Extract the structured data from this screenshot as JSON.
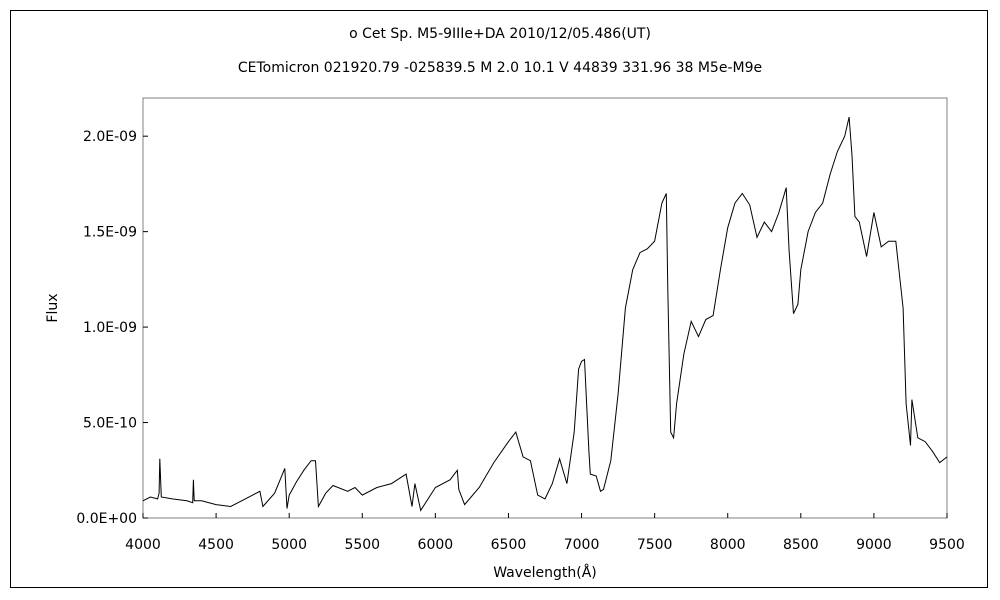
{
  "chart_data": {
    "type": "line",
    "title_line1": "o  Cet    Sp. M5-9IIIe+DA    2010/12/05.486(UT)",
    "title_line2": "CETomicron 021920.79 -025839.5 M 2.0 10.1 V 44839 331.96 38 M5e-M9e",
    "xlabel": "Wavelength(Å)",
    "ylabel": "Flux",
    "xlim": [
      4000,
      9500
    ],
    "ylim": [
      0,
      2.2e-09
    ],
    "x_ticks": [
      4000,
      4500,
      5000,
      5500,
      6000,
      6500,
      7000,
      7500,
      8000,
      8500,
      9000,
      9500
    ],
    "x_tick_labels": [
      "4000",
      "4500",
      "5000",
      "5500",
      "6000",
      "6500",
      "7000",
      "7500",
      "8000",
      "8500",
      "9000",
      "9500"
    ],
    "y_ticks": [
      0,
      5e-10,
      1e-09,
      1.5e-09,
      2e-09
    ],
    "y_tick_labels": [
      "0.0E+00",
      "5.0E-10",
      "1.0E-09",
      "1.5E-09",
      "2.0E-09"
    ],
    "grid": false,
    "line_color": "#000000",
    "series": [
      {
        "x": [
          4000,
          4050,
          4100,
          4110,
          4115,
          4125,
          4200,
          4300,
          4340,
          4345,
          4350,
          4400,
          4500,
          4600,
          4700,
          4800,
          4820,
          4900,
          4970,
          4985,
          5000,
          5050,
          5100,
          5150,
          5180,
          5200,
          5250,
          5300,
          5400,
          5450,
          5500,
          5600,
          5700,
          5800,
          5840,
          5860,
          5900,
          6000,
          6100,
          6150,
          6160,
          6200,
          6300,
          6400,
          6500,
          6550,
          6600,
          6650,
          6700,
          6750,
          6800,
          6850,
          6900,
          6950,
          6980,
          7000,
          7020,
          7050,
          7060,
          7100,
          7130,
          7150,
          7200,
          7250,
          7300,
          7350,
          7400,
          7450,
          7500,
          7550,
          7580,
          7590,
          7610,
          7630,
          7650,
          7700,
          7750,
          7800,
          7850,
          7900,
          7950,
          8000,
          8050,
          8100,
          8150,
          8200,
          8250,
          8300,
          8350,
          8400,
          8420,
          8450,
          8480,
          8500,
          8550,
          8600,
          8650,
          8700,
          8750,
          8800,
          8830,
          8850,
          8870,
          8900,
          8950,
          9000,
          9050,
          9100,
          9150,
          9200,
          9220,
          9250,
          9260,
          9300,
          9350,
          9400,
          9450,
          9500
        ],
        "y": [
          9e-11,
          1.1e-10,
          1e-10,
          1.3e-10,
          3.1e-10,
          1.1e-10,
          1e-10,
          9e-11,
          8e-11,
          2e-10,
          9e-11,
          9e-11,
          7e-11,
          6e-11,
          1e-10,
          1.4e-10,
          6e-11,
          1.3e-10,
          2.6e-10,
          5e-11,
          1.2e-10,
          1.9e-10,
          2.5e-10,
          3e-10,
          3e-10,
          6e-11,
          1.3e-10,
          1.7e-10,
          1.4e-10,
          1.6e-10,
          1.2e-10,
          1.6e-10,
          1.8e-10,
          2.3e-10,
          6e-11,
          1.8e-10,
          4e-11,
          1.6e-10,
          2e-10,
          2.5e-10,
          1.5e-10,
          7e-11,
          1.6e-10,
          2.9e-10,
          4e-10,
          4.5e-10,
          3.2e-10,
          3e-10,
          1.2e-10,
          1e-10,
          1.8e-10,
          3.1e-10,
          1.8e-10,
          4.5e-10,
          7.8e-10,
          8.2e-10,
          8.3e-10,
          3.5e-10,
          2.3e-10,
          2.2e-10,
          1.4e-10,
          1.5e-10,
          3e-10,
          6.5e-10,
          1.1e-09,
          1.3e-09,
          1.39e-09,
          1.41e-09,
          1.45e-09,
          1.65e-09,
          1.7e-09,
          1.2e-09,
          4.5e-10,
          4.2e-10,
          6e-10,
          8.6e-10,
          1.03e-09,
          9.5e-10,
          1.04e-09,
          1.06e-09,
          1.3e-09,
          1.52e-09,
          1.65e-09,
          1.7e-09,
          1.64e-09,
          1.47e-09,
          1.55e-09,
          1.5e-09,
          1.6e-09,
          1.73e-09,
          1.4e-09,
          1.07e-09,
          1.12e-09,
          1.3e-09,
          1.5e-09,
          1.6e-09,
          1.65e-09,
          1.8e-09,
          1.92e-09,
          2e-09,
          2.1e-09,
          1.9e-09,
          1.58e-09,
          1.55e-09,
          1.37e-09,
          1.6e-09,
          1.42e-09,
          1.45e-09,
          1.45e-09,
          1.1e-09,
          6e-10,
          3.8e-10,
          6.2e-10,
          4.2e-10,
          4e-10,
          3.5e-10,
          2.9e-10,
          3.2e-10
        ]
      }
    ]
  }
}
